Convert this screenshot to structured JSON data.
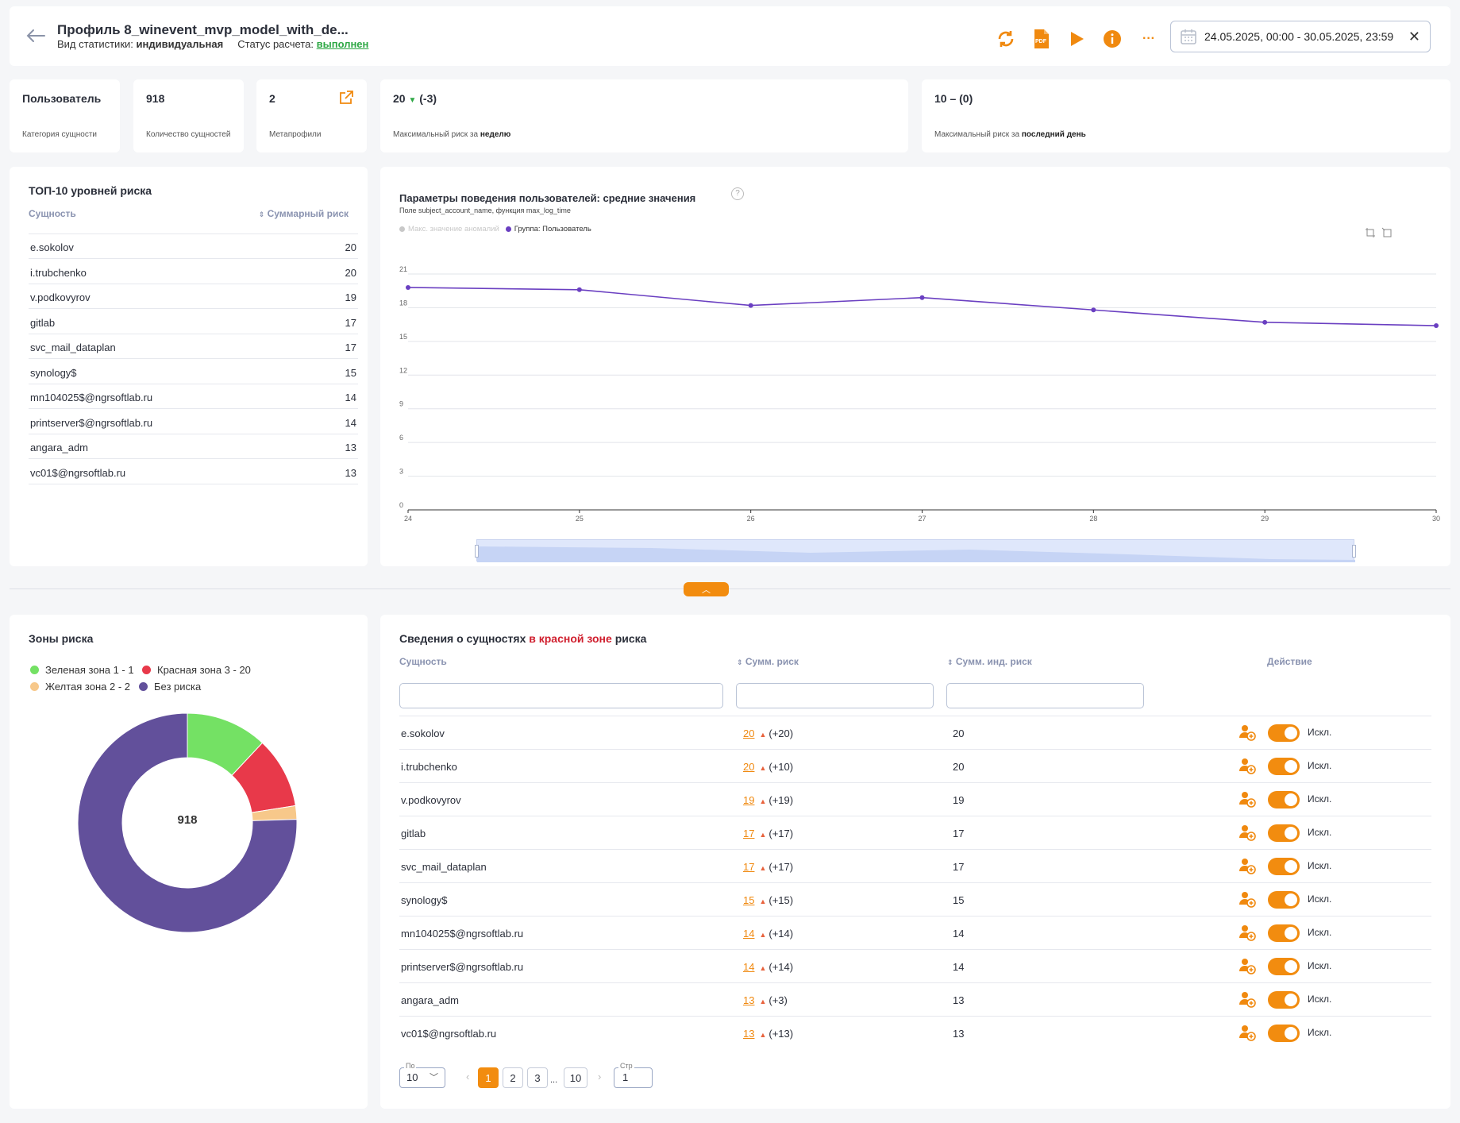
{
  "header": {
    "title": "Профиль 8_winevent_mvp_model_with_de...",
    "stat_type_label": "Вид статистики:",
    "stat_type_value": "индивидуальная",
    "status_label": "Статус расчета:",
    "status_value": "выполнен",
    "date_range": "24.05.2025, 00:00 - 30.05.2025, 23:59",
    "pdf_icon_text": "PDF",
    "more_icon_text": "···"
  },
  "stats": {
    "category": {
      "value": "Пользователь",
      "label": "Категория сущности"
    },
    "count": {
      "value": "918",
      "label": "Количество сущностей"
    },
    "meta": {
      "value": "2",
      "label": "Метапрофили"
    },
    "week": {
      "value": "20",
      "delta": "(-3)",
      "label_prefix": "Максимальный риск за",
      "label_bold": "неделю"
    },
    "day": {
      "value": "10",
      "delta": "– (0)",
      "label_prefix": "Максимальный риск за",
      "label_bold": "последний день"
    }
  },
  "top10": {
    "title": "ТОП-10 уровней риска",
    "col_entity": "Сущность",
    "col_risk": "Суммарный риск",
    "rows": [
      {
        "name": "e.sokolov",
        "risk": "20"
      },
      {
        "name": "i.trubchenko",
        "risk": "20"
      },
      {
        "name": "v.podkovyrov",
        "risk": "19"
      },
      {
        "name": "gitlab",
        "risk": "17"
      },
      {
        "name": "svc_mail_dataplan",
        "risk": "17"
      },
      {
        "name": "synology$",
        "risk": "15"
      },
      {
        "name": "mn104025$@ngrsoftlab.ru",
        "risk": "14"
      },
      {
        "name": "printserver$@ngrsoftlab.ru",
        "risk": "14"
      },
      {
        "name": "angara_adm",
        "risk": "13"
      },
      {
        "name": "vc01$@ngrsoftlab.ru",
        "risk": "13"
      }
    ]
  },
  "linechart": {
    "title": "Параметры поведения пользователей: средние значения",
    "subtitle": "Поле subject_account_name, функция max_log_time",
    "help_icon": "?",
    "legend": [
      {
        "name": "Макс. значение аномалий",
        "color": "#c8c8c8",
        "inactive": true
      },
      {
        "name": "Группа: Пользователь",
        "color": "#6a3fc1",
        "inactive": false
      }
    ]
  },
  "chart_data": {
    "type": "line",
    "title": "Параметры поведения пользователей: средние значения",
    "x": [
      "24",
      "25",
      "26",
      "27",
      "28",
      "29",
      "30"
    ],
    "yticks": [
      "0",
      "3",
      "6",
      "9",
      "12",
      "15",
      "18",
      "21"
    ],
    "ylim": [
      0,
      21
    ],
    "grid": true,
    "legend_position": "top-left",
    "series": [
      {
        "name": "Группа: Пользователь",
        "color": "#6a3fc1",
        "values": [
          19.8,
          19.6,
          18.2,
          18.9,
          17.8,
          16.7,
          16.4
        ]
      }
    ]
  },
  "divider": {
    "collapse_icon": "︿"
  },
  "zones": {
    "title": "Зоны риска",
    "legend": [
      {
        "label": "Зеленая зона 1 - 1",
        "color": "#74e164"
      },
      {
        "label": "Красная зона 3 - 20",
        "color": "#e8394a"
      },
      {
        "label": "Желтая зона 2 - 2",
        "color": "#f7c88a"
      },
      {
        "label": "Без риска",
        "color": "#62509b"
      }
    ],
    "total": "918",
    "slices": [
      {
        "name": "Зеленая зона 1 - 1",
        "fraction": 0.12,
        "color": "#74e164"
      },
      {
        "name": "Красная зона 3 - 20",
        "fraction": 0.105,
        "color": "#e8394a"
      },
      {
        "name": "Желтая зона 2 - 2",
        "fraction": 0.02,
        "color": "#f7c88a"
      },
      {
        "name": "Без риска",
        "fraction": 0.755,
        "color": "#62509b"
      }
    ]
  },
  "entities": {
    "title_pre": "Сведения о сущностях",
    "title_red": "в красной зоне",
    "title_post": "риска",
    "col_entity": "Сущность",
    "col_sum": "Сумм. риск",
    "col_ind": "Сумм. инд. риск",
    "col_action": "Действие",
    "toggle_label": "Искл.",
    "rows": [
      {
        "name": "e.sokolov",
        "sum": "20",
        "delta": "(+20)",
        "ind": "20"
      },
      {
        "name": "i.trubchenko",
        "sum": "20",
        "delta": "(+10)",
        "ind": "20"
      },
      {
        "name": "v.podkovyrov",
        "sum": "19",
        "delta": "(+19)",
        "ind": "19"
      },
      {
        "name": "gitlab",
        "sum": "17",
        "delta": "(+17)",
        "ind": "17"
      },
      {
        "name": "svc_mail_dataplan",
        "sum": "17",
        "delta": "(+17)",
        "ind": "17"
      },
      {
        "name": "synology$",
        "sum": "15",
        "delta": "(+15)",
        "ind": "15"
      },
      {
        "name": "mn104025$@ngrsoftlab.ru",
        "sum": "14",
        "delta": "(+14)",
        "ind": "14"
      },
      {
        "name": "printserver$@ngrsoftlab.ru",
        "sum": "14",
        "delta": "(+14)",
        "ind": "14"
      },
      {
        "name": "angara_adm",
        "sum": "13",
        "delta": "(+3)",
        "ind": "13"
      },
      {
        "name": "vc01$@ngrsoftlab.ru",
        "sum": "13",
        "delta": "(+13)",
        "ind": "13"
      }
    ]
  },
  "pagination": {
    "per_page_label": "По",
    "per_page": "10",
    "pages": [
      "1",
      "2",
      "3",
      "10"
    ],
    "ellipsis": "...",
    "page_label": "Стр",
    "page_input": "1",
    "prev": "‹",
    "next": "›"
  },
  "colors": {
    "accent": "#f28c0f",
    "success": "#2ea845",
    "danger": "#d01f2e",
    "line": "#6a3fc1"
  }
}
